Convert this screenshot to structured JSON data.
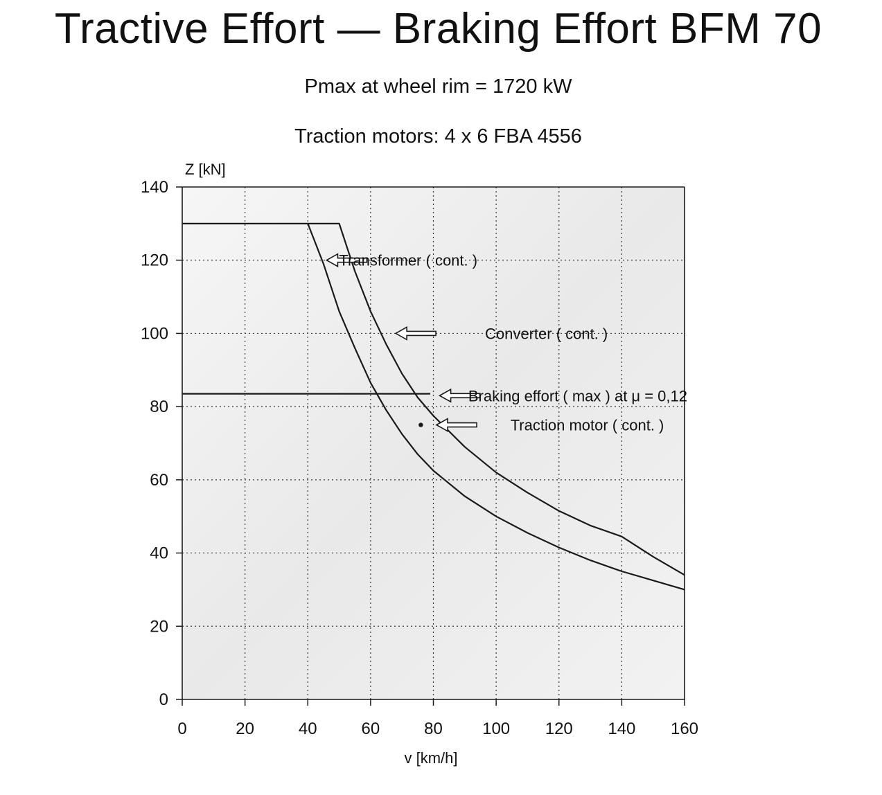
{
  "chart_data": {
    "type": "line",
    "title": "Tractive Effort — Braking Effort BFM 70",
    "subtitles": [
      "Pmax at wheel rim = 1720 kW",
      "Traction motors: 4 x 6 FBA 4556"
    ],
    "xlabel": "v [km/h]",
    "ylabel": "Z [kN]",
    "xlim": [
      0,
      160
    ],
    "ylim": [
      0,
      140
    ],
    "x_ticks": [
      "0",
      "20",
      "40",
      "60",
      "80",
      "100",
      "120",
      "140",
      "160"
    ],
    "y_ticks": [
      "0",
      "20",
      "40",
      "60",
      "80",
      "100",
      "120",
      "140"
    ],
    "grid": true,
    "grid_style": "dotted",
    "series": [
      {
        "name": "Transformer ( cont. )",
        "line_color": "#1a1a1a",
        "points": [
          [
            0,
            130
          ],
          [
            50,
            130
          ],
          [
            55,
            117
          ],
          [
            60,
            106
          ],
          [
            65,
            97
          ],
          [
            70,
            89
          ],
          [
            75,
            82.5
          ],
          [
            80,
            77.5
          ],
          [
            90,
            69
          ],
          [
            100,
            62
          ],
          [
            110,
            56.5
          ],
          [
            120,
            51.5
          ],
          [
            130,
            47.5
          ],
          [
            140,
            44.5
          ],
          [
            150,
            39
          ],
          [
            160,
            34
          ]
        ]
      },
      {
        "name": "Converter ( cont. )",
        "line_color": "#1a1a1a",
        "points": [
          [
            40,
            130
          ],
          [
            45,
            119
          ],
          [
            50,
            106
          ],
          [
            55,
            96
          ],
          [
            60,
            86.5
          ],
          [
            65,
            79
          ],
          [
            70,
            72.5
          ],
          [
            75,
            67
          ],
          [
            80,
            62.5
          ],
          [
            90,
            55.5
          ],
          [
            100,
            50
          ],
          [
            110,
            45.5
          ],
          [
            120,
            41.5
          ],
          [
            130,
            38
          ],
          [
            140,
            35
          ],
          [
            150,
            32.5
          ],
          [
            160,
            30
          ]
        ]
      },
      {
        "name": "Braking effort ( max ) at μ = 0,12",
        "line_color": "#1a1a1a",
        "points": [
          [
            0,
            83.5
          ],
          [
            79,
            83.5
          ]
        ]
      },
      {
        "name": "Traction motor ( cont. )",
        "marker": "dot",
        "points": [
          [
            76,
            75
          ]
        ]
      }
    ],
    "annotations": [
      {
        "text": "Transformer ( cont. )",
        "arrow_to": [
          46,
          120
        ],
        "label_at": [
          72,
          120
        ]
      },
      {
        "text": "Converter ( cont. )",
        "arrow_to": [
          68,
          100
        ],
        "label_at": [
          116,
          100
        ]
      },
      {
        "text": "Braking effort ( max ) at μ = 0,12",
        "arrow_to": [
          82,
          83
        ],
        "label_at": [
          126,
          83
        ]
      },
      {
        "text": "Traction motor ( cont. )",
        "arrow_to": [
          81,
          75
        ],
        "label_at": [
          129,
          75
        ]
      }
    ],
    "shading_color": "#ededed"
  }
}
